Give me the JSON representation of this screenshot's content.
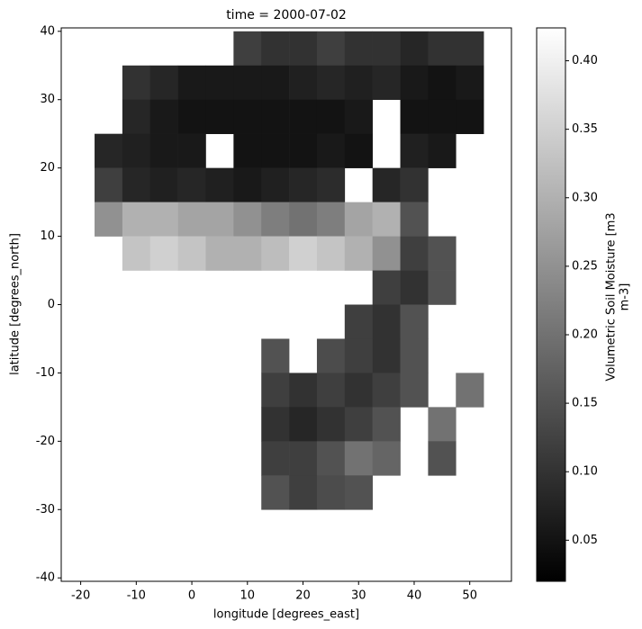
{
  "chart_data": {
    "type": "heatmap",
    "title": "time = 2000-07-02",
    "x_label": "longitude [degrees_east]",
    "y_label": "latitude [degrees_north]",
    "colorbar_label": [
      "Volumetric Soil Moisture [m3",
      "m-3]"
    ],
    "xlim": [
      -23.5,
      57.5
    ],
    "ylim": [
      -40.5,
      40.5
    ],
    "xticks": [
      -20,
      -10,
      0,
      10,
      20,
      30,
      40,
      50
    ],
    "yticks": [
      -40,
      -30,
      -20,
      -10,
      0,
      10,
      20,
      30,
      40
    ],
    "clim": [
      0.02,
      0.424
    ],
    "cticks": [
      0.05,
      {
        "value": 0.1,
        "label": "0.10"
      },
      0.15,
      {
        "value": 0.2,
        "label": "0.20"
      },
      0.25,
      {
        "value": 0.3,
        "label": "0.30"
      },
      0.35,
      {
        "value": 0.4,
        "label": "0.40"
      }
    ],
    "colormap": [
      "#000000",
      "#ffffff"
    ],
    "x": [
      -20,
      -15,
      -10,
      -5,
      0,
      5,
      10,
      15,
      20,
      25,
      30,
      35,
      40,
      45,
      50,
      55
    ],
    "y": [
      37.5,
      32.5,
      27.5,
      22.5,
      17.5,
      12.5,
      7.5,
      2.5,
      -2.5,
      -7.5,
      -12.5,
      -17.5,
      -22.5,
      -27.5,
      -32.5,
      -37.5
    ],
    "z": [
      [
        null,
        null,
        null,
        null,
        null,
        null,
        0.12,
        0.1,
        0.1,
        0.12,
        0.1,
        0.1,
        0.08,
        0.1,
        0.1,
        null
      ],
      [
        null,
        null,
        0.1,
        0.08,
        0.06,
        0.06,
        0.06,
        0.06,
        0.07,
        0.08,
        0.07,
        0.08,
        0.06,
        0.05,
        0.06,
        null
      ],
      [
        null,
        null,
        0.08,
        0.06,
        0.05,
        0.05,
        0.05,
        0.05,
        0.05,
        0.05,
        0.06,
        null,
        0.05,
        0.05,
        0.05,
        null
      ],
      [
        null,
        0.08,
        0.07,
        0.06,
        0.06,
        null,
        0.05,
        0.05,
        0.05,
        0.06,
        0.05,
        null,
        0.07,
        0.06,
        null,
        null
      ],
      [
        null,
        0.12,
        0.08,
        0.07,
        0.08,
        0.07,
        0.06,
        0.07,
        0.08,
        0.09,
        null,
        0.08,
        0.1,
        null,
        null,
        null
      ],
      [
        null,
        0.25,
        0.3,
        0.3,
        0.28,
        0.28,
        0.25,
        0.22,
        0.2,
        0.22,
        0.28,
        0.3,
        0.15,
        null,
        null,
        null
      ],
      [
        null,
        null,
        0.33,
        0.35,
        0.33,
        0.3,
        0.3,
        0.32,
        0.35,
        0.33,
        0.3,
        0.25,
        0.12,
        0.15,
        null,
        null
      ],
      [
        null,
        null,
        null,
        null,
        null,
        null,
        null,
        null,
        null,
        null,
        null,
        0.12,
        0.1,
        0.15,
        null,
        null
      ],
      [
        null,
        null,
        null,
        null,
        null,
        null,
        null,
        null,
        null,
        null,
        0.12,
        0.1,
        0.15,
        null,
        null,
        null
      ],
      [
        null,
        null,
        null,
        null,
        null,
        null,
        null,
        0.15,
        null,
        0.14,
        0.12,
        0.1,
        0.15,
        null,
        null,
        null
      ],
      [
        null,
        null,
        null,
        null,
        null,
        null,
        null,
        0.12,
        0.1,
        0.12,
        0.1,
        0.12,
        0.15,
        null,
        0.2,
        null
      ],
      [
        null,
        null,
        null,
        null,
        null,
        null,
        null,
        0.1,
        0.08,
        0.1,
        0.12,
        0.15,
        null,
        0.2,
        null,
        null
      ],
      [
        null,
        null,
        null,
        null,
        null,
        null,
        null,
        0.12,
        0.12,
        0.15,
        0.2,
        0.18,
        null,
        0.15,
        null,
        null
      ],
      [
        null,
        null,
        null,
        null,
        null,
        null,
        null,
        0.15,
        0.12,
        0.14,
        0.15,
        null,
        null,
        null,
        null,
        null
      ],
      [
        null,
        null,
        null,
        null,
        null,
        null,
        null,
        null,
        null,
        null,
        null,
        null,
        null,
        null,
        null,
        null
      ],
      [
        null,
        null,
        null,
        null,
        null,
        null,
        null,
        null,
        null,
        null,
        null,
        null,
        null,
        null,
        null,
        null
      ]
    ]
  }
}
